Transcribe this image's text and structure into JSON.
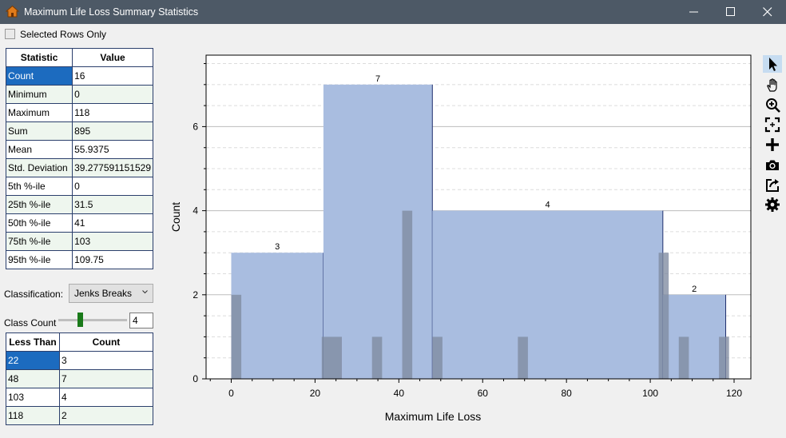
{
  "window": {
    "title": "Maximum Life Loss Summary Statistics"
  },
  "selected_rows_only": {
    "label": "Selected Rows Only",
    "checked": false
  },
  "stats_table": {
    "headers": [
      "Statistic",
      "Value"
    ],
    "rows": [
      [
        "Count",
        "16"
      ],
      [
        "Minimum",
        "0"
      ],
      [
        "Maximum",
        "118"
      ],
      [
        "Sum",
        "895"
      ],
      [
        "Mean",
        "55.9375"
      ],
      [
        "Std. Deviation",
        "39.277591151529"
      ],
      [
        "5th %-ile",
        "0"
      ],
      [
        "25th %-ile",
        "31.5"
      ],
      [
        "50th %-ile",
        "41"
      ],
      [
        "75th %-ile",
        "103"
      ],
      [
        "95th %-ile",
        "109.75"
      ]
    ]
  },
  "classification": {
    "label": "Classification:",
    "value": "Jenks Breaks"
  },
  "class_count": {
    "label": "Class Count",
    "value": "4",
    "slider_fraction": 0.3
  },
  "class_table": {
    "headers": [
      "Less Than",
      "Count"
    ],
    "rows": [
      [
        "22",
        "3"
      ],
      [
        "48",
        "7"
      ],
      [
        "103",
        "4"
      ],
      [
        "118",
        "2"
      ]
    ]
  },
  "toolbar": [
    "pointer-icon",
    "pan-hand-icon",
    "zoom-in-icon",
    "zoom-extent-icon",
    "add-icon",
    "camera-icon",
    "export-icon",
    "settings-icon"
  ],
  "colors": {
    "bar": "#a9bde0",
    "bar_edge": "#1f2f6e",
    "detail": "#7f8ba0",
    "selection": "#1c6bbf"
  },
  "chart_data": {
    "type": "bar",
    "xlabel": "Maximum Life Loss",
    "ylabel": "Count",
    "xlim": [
      -6,
      124
    ],
    "ylim": [
      0,
      7.7
    ],
    "xticks": [
      "0",
      "20",
      "40",
      "60",
      "80",
      "100",
      "120"
    ],
    "yticks": [
      "0",
      "2",
      "4",
      "6"
    ],
    "classes": [
      {
        "from": 0,
        "to": 22,
        "count": 3,
        "label": "3"
      },
      {
        "from": 22,
        "to": 48,
        "count": 7,
        "label": "7"
      },
      {
        "from": 48,
        "to": 103,
        "count": 4,
        "label": "4"
      },
      {
        "from": 103,
        "to": 118,
        "count": 2,
        "label": "2"
      }
    ],
    "detail_bars": [
      {
        "from": 0,
        "to": 2.4,
        "count": 2
      },
      {
        "from": 21.6,
        "to": 26.4,
        "count": 1
      },
      {
        "from": 33.6,
        "to": 36,
        "count": 1
      },
      {
        "from": 40.8,
        "to": 43.2,
        "count": 4
      },
      {
        "from": 48,
        "to": 50.4,
        "count": 1
      },
      {
        "from": 68.4,
        "to": 70.8,
        "count": 1
      },
      {
        "from": 102,
        "to": 104.4,
        "count": 3
      },
      {
        "from": 106.8,
        "to": 109.2,
        "count": 1
      },
      {
        "from": 116.4,
        "to": 118.8,
        "count": 1
      }
    ],
    "grid": true
  }
}
